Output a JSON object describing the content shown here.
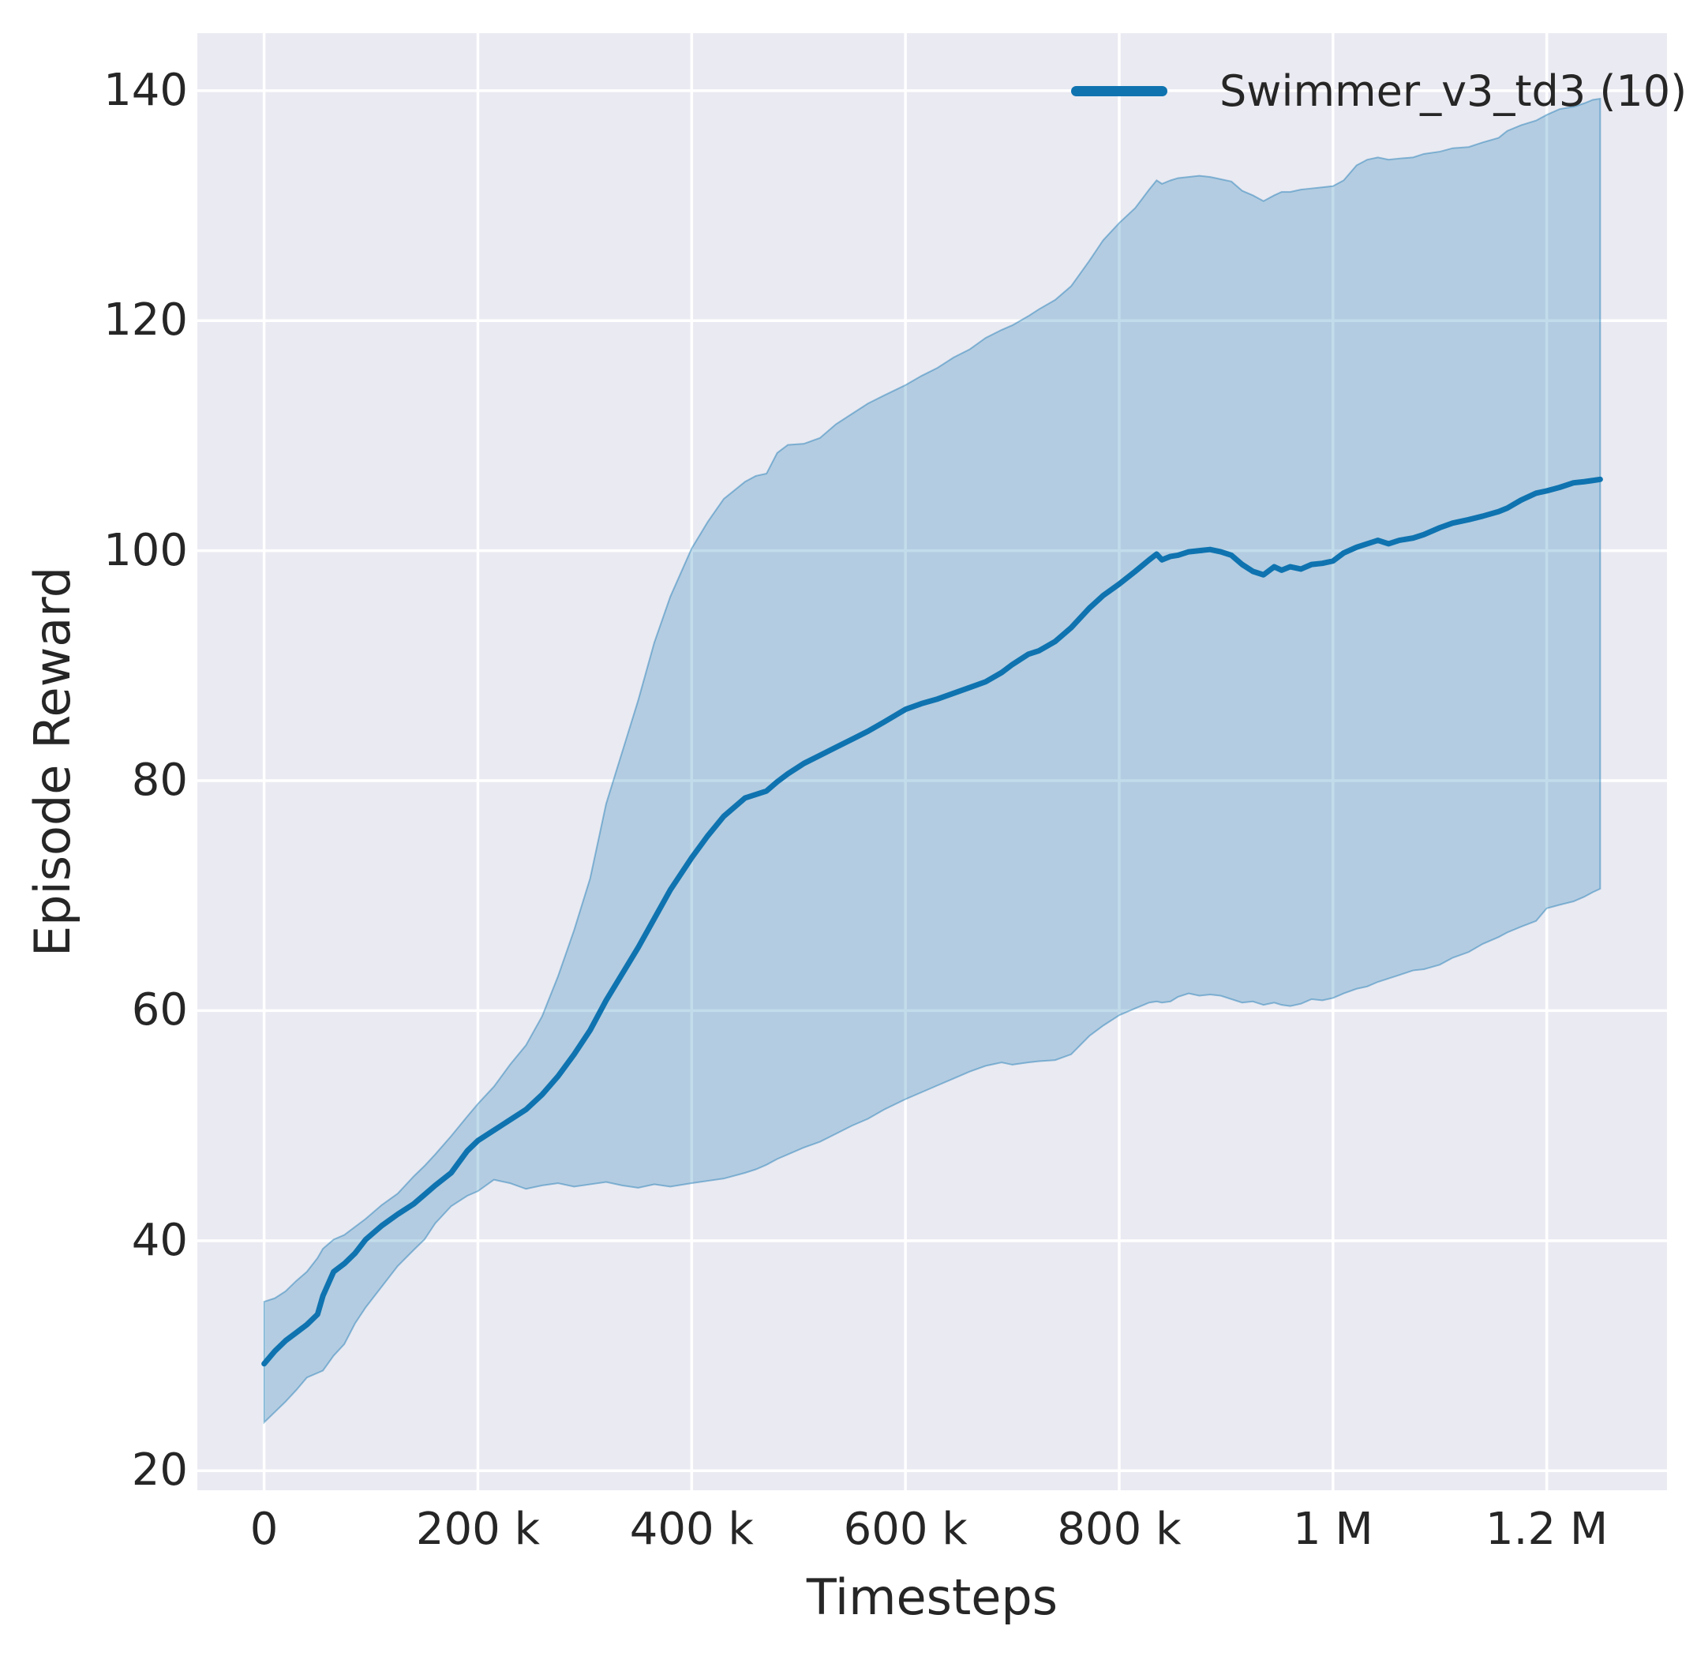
{
  "chart_data": {
    "type": "line",
    "title": "",
    "xlabel": "Timesteps",
    "ylabel": "Episode Reward",
    "grid": true,
    "legend_position": "upper right",
    "xlim": [
      -62500,
      1312500
    ],
    "ylim": [
      18.3,
      145.0
    ],
    "x_ticks": [
      {
        "value": 0,
        "label": "0"
      },
      {
        "value": 200000,
        "label": "200 k"
      },
      {
        "value": 400000,
        "label": "400 k"
      },
      {
        "value": 600000,
        "label": "600 k"
      },
      {
        "value": 800000,
        "label": "800 k"
      },
      {
        "value": 1000000,
        "label": "1 M"
      },
      {
        "value": 1200000,
        "label": "1.2 M"
      }
    ],
    "y_ticks": [
      {
        "value": 20,
        "label": "20"
      },
      {
        "value": 40,
        "label": "40"
      },
      {
        "value": 60,
        "label": "60"
      },
      {
        "value": 80,
        "label": "80"
      },
      {
        "value": 100,
        "label": "100"
      },
      {
        "value": 120,
        "label": "120"
      },
      {
        "value": 140,
        "label": "140"
      }
    ],
    "series": [
      {
        "name": "Swimmer_v3_td3 (10)",
        "color": "#0f73b0",
        "band_fill_alpha": 0.25,
        "band_edge_alpha": 0.42,
        "x_thousands": [
          0,
          10,
          20,
          30,
          40,
          50,
          55,
          65,
          75,
          85,
          95,
          110,
          125,
          140,
          150,
          160,
          175,
          190,
          200,
          215,
          230,
          245,
          260,
          275,
          290,
          305,
          320,
          335,
          350,
          365,
          380,
          400,
          415,
          430,
          450,
          460,
          470,
          480,
          490,
          505,
          520,
          535,
          550,
          565,
          580,
          600,
          615,
          630,
          645,
          660,
          675,
          690,
          700,
          715,
          725,
          740,
          755,
          772,
          785,
          800,
          815,
          828,
          835,
          840,
          848,
          855,
          865,
          875,
          885,
          895,
          905,
          915,
          925,
          935,
          945,
          952,
          960,
          970,
          980,
          990,
          1000,
          1010,
          1022,
          1032,
          1042,
          1052,
          1062,
          1075,
          1085,
          1100,
          1112,
          1127,
          1140,
          1155,
          1163,
          1176,
          1190,
          1200,
          1212,
          1225,
          1235,
          1243,
          1250
        ],
        "mean": [
          29.3,
          30.4,
          31.3,
          32.0,
          32.7,
          33.6,
          35.2,
          37.3,
          38.0,
          38.9,
          40.1,
          41.3,
          42.3,
          43.2,
          44.0,
          44.8,
          45.9,
          47.8,
          48.7,
          49.6,
          50.5,
          51.4,
          52.7,
          54.3,
          56.2,
          58.3,
          60.9,
          63.2,
          65.5,
          68.0,
          70.5,
          73.3,
          75.2,
          76.9,
          78.5,
          78.8,
          79.1,
          79.9,
          80.6,
          81.5,
          82.2,
          82.9,
          83.6,
          84.3,
          85.1,
          86.2,
          86.7,
          87.1,
          87.6,
          88.1,
          88.6,
          89.4,
          90.1,
          91.0,
          91.3,
          92.1,
          93.3,
          95.0,
          96.1,
          97.1,
          98.2,
          99.2,
          99.7,
          99.2,
          99.5,
          99.6,
          99.9,
          100.0,
          100.1,
          99.9,
          99.6,
          98.8,
          98.2,
          97.9,
          98.6,
          98.3,
          98.6,
          98.4,
          98.8,
          98.9,
          99.1,
          99.8,
          100.3,
          100.6,
          100.9,
          100.6,
          100.9,
          101.1,
          101.4,
          102.0,
          102.4,
          102.7,
          103.0,
          103.4,
          103.7,
          104.4,
          105.0,
          105.2,
          105.5,
          105.9,
          106.0,
          106.1,
          106.2
        ],
        "lower": [
          24.2,
          25.1,
          26.0,
          27.0,
          28.1,
          28.5,
          28.7,
          30.0,
          31.0,
          32.8,
          34.2,
          36.0,
          37.8,
          39.2,
          40.1,
          41.5,
          43.0,
          43.9,
          44.3,
          45.3,
          45.0,
          44.5,
          44.8,
          45.0,
          44.7,
          44.9,
          45.1,
          44.8,
          44.6,
          44.9,
          44.7,
          45.0,
          45.2,
          45.4,
          45.9,
          46.2,
          46.6,
          47.1,
          47.5,
          48.1,
          48.6,
          49.3,
          50.0,
          50.6,
          51.4,
          52.3,
          52.9,
          53.5,
          54.1,
          54.7,
          55.2,
          55.5,
          55.3,
          55.5,
          55.6,
          55.7,
          56.2,
          57.8,
          58.7,
          59.6,
          60.2,
          60.7,
          60.8,
          60.7,
          60.8,
          61.2,
          61.5,
          61.3,
          61.4,
          61.3,
          61.0,
          60.7,
          60.8,
          60.5,
          60.7,
          60.5,
          60.4,
          60.6,
          61.0,
          60.9,
          61.1,
          61.5,
          61.9,
          62.1,
          62.5,
          62.8,
          63.1,
          63.5,
          63.6,
          64.0,
          64.6,
          65.1,
          65.8,
          66.4,
          66.8,
          67.3,
          67.8,
          68.9,
          69.2,
          69.5,
          69.9,
          70.3,
          70.6
        ],
        "upper": [
          34.7,
          35.0,
          35.6,
          36.5,
          37.3,
          38.5,
          39.3,
          40.1,
          40.5,
          41.2,
          41.9,
          43.1,
          44.1,
          45.6,
          46.5,
          47.5,
          49.1,
          50.8,
          51.9,
          53.4,
          55.3,
          57.0,
          59.5,
          63.0,
          67.0,
          71.5,
          78.0,
          82.5,
          87.0,
          92.0,
          96.0,
          100.2,
          102.5,
          104.5,
          106.0,
          106.5,
          106.7,
          108.5,
          109.2,
          109.3,
          109.8,
          111.0,
          111.9,
          112.8,
          113.5,
          114.4,
          115.2,
          115.9,
          116.8,
          117.5,
          118.5,
          119.2,
          119.6,
          120.4,
          121.0,
          121.8,
          123.0,
          125.2,
          127.0,
          128.5,
          129.8,
          131.4,
          132.2,
          131.9,
          132.2,
          132.4,
          132.5,
          132.6,
          132.5,
          132.3,
          132.1,
          131.3,
          130.9,
          130.4,
          130.9,
          131.2,
          131.2,
          131.4,
          131.5,
          131.6,
          131.7,
          132.2,
          133.5,
          134.0,
          134.2,
          134.0,
          134.1,
          134.2,
          134.5,
          134.7,
          135.0,
          135.1,
          135.5,
          135.9,
          136.5,
          137.0,
          137.4,
          137.9,
          138.4,
          138.6,
          138.9,
          139.2,
          139.3
        ]
      }
    ],
    "legend": [
      {
        "label": "Swimmer_v3_td3 (10)",
        "color": "#0f73b0"
      }
    ]
  },
  "colors": {
    "axes_background": "#eaeaf2",
    "gridline": "#ffffff",
    "text": "#262626",
    "line": "#0f73b0"
  }
}
